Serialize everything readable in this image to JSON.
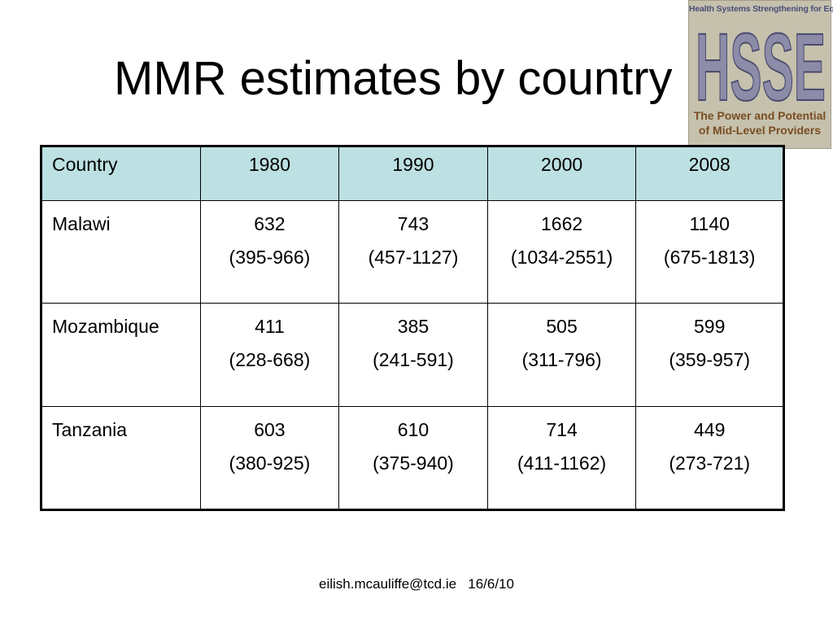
{
  "slide": {
    "title": "MMR estimates by country"
  },
  "logo": {
    "top_text": "Health Systems Strengthening for Equity",
    "letters": "HSSE",
    "line1": "The Power and Potential",
    "line2": "of Mid-Level Providers",
    "colors": {
      "background": "#c5c1ad",
      "letters": "#8c8ba8",
      "letter_outline": "#4a4a6e",
      "tagline": "#7a4d22"
    }
  },
  "table": {
    "header_color": "#bde0e2",
    "columns": [
      "Country",
      "1980",
      "1990",
      "2000",
      "2008"
    ],
    "rows": [
      {
        "country": "Malawi",
        "cells": [
          {
            "value": "632",
            "range": "(395-966)"
          },
          {
            "value": "743",
            "range": "(457-1127)"
          },
          {
            "value": "1662",
            "range": "(1034-2551)"
          },
          {
            "value": "1140",
            "range": "(675-1813)"
          }
        ]
      },
      {
        "country": "Mozambique",
        "cells": [
          {
            "value": "411",
            "range": "(228-668)"
          },
          {
            "value": "385",
            "range": "(241-591)"
          },
          {
            "value": "505",
            "range": "(311-796)"
          },
          {
            "value": "599",
            "range": "(359-957)"
          }
        ]
      },
      {
        "country": "Tanzania",
        "cells": [
          {
            "value": "603",
            "range": "(380-925)"
          },
          {
            "value": "610",
            "range": "(375-940)"
          },
          {
            "value": "714",
            "range": "(411-1162)"
          },
          {
            "value": "449",
            "range": "(273-721)"
          }
        ]
      }
    ]
  },
  "footer": {
    "email": "eilish.mcauliffe@tcd.ie",
    "date": "16/6/10"
  }
}
